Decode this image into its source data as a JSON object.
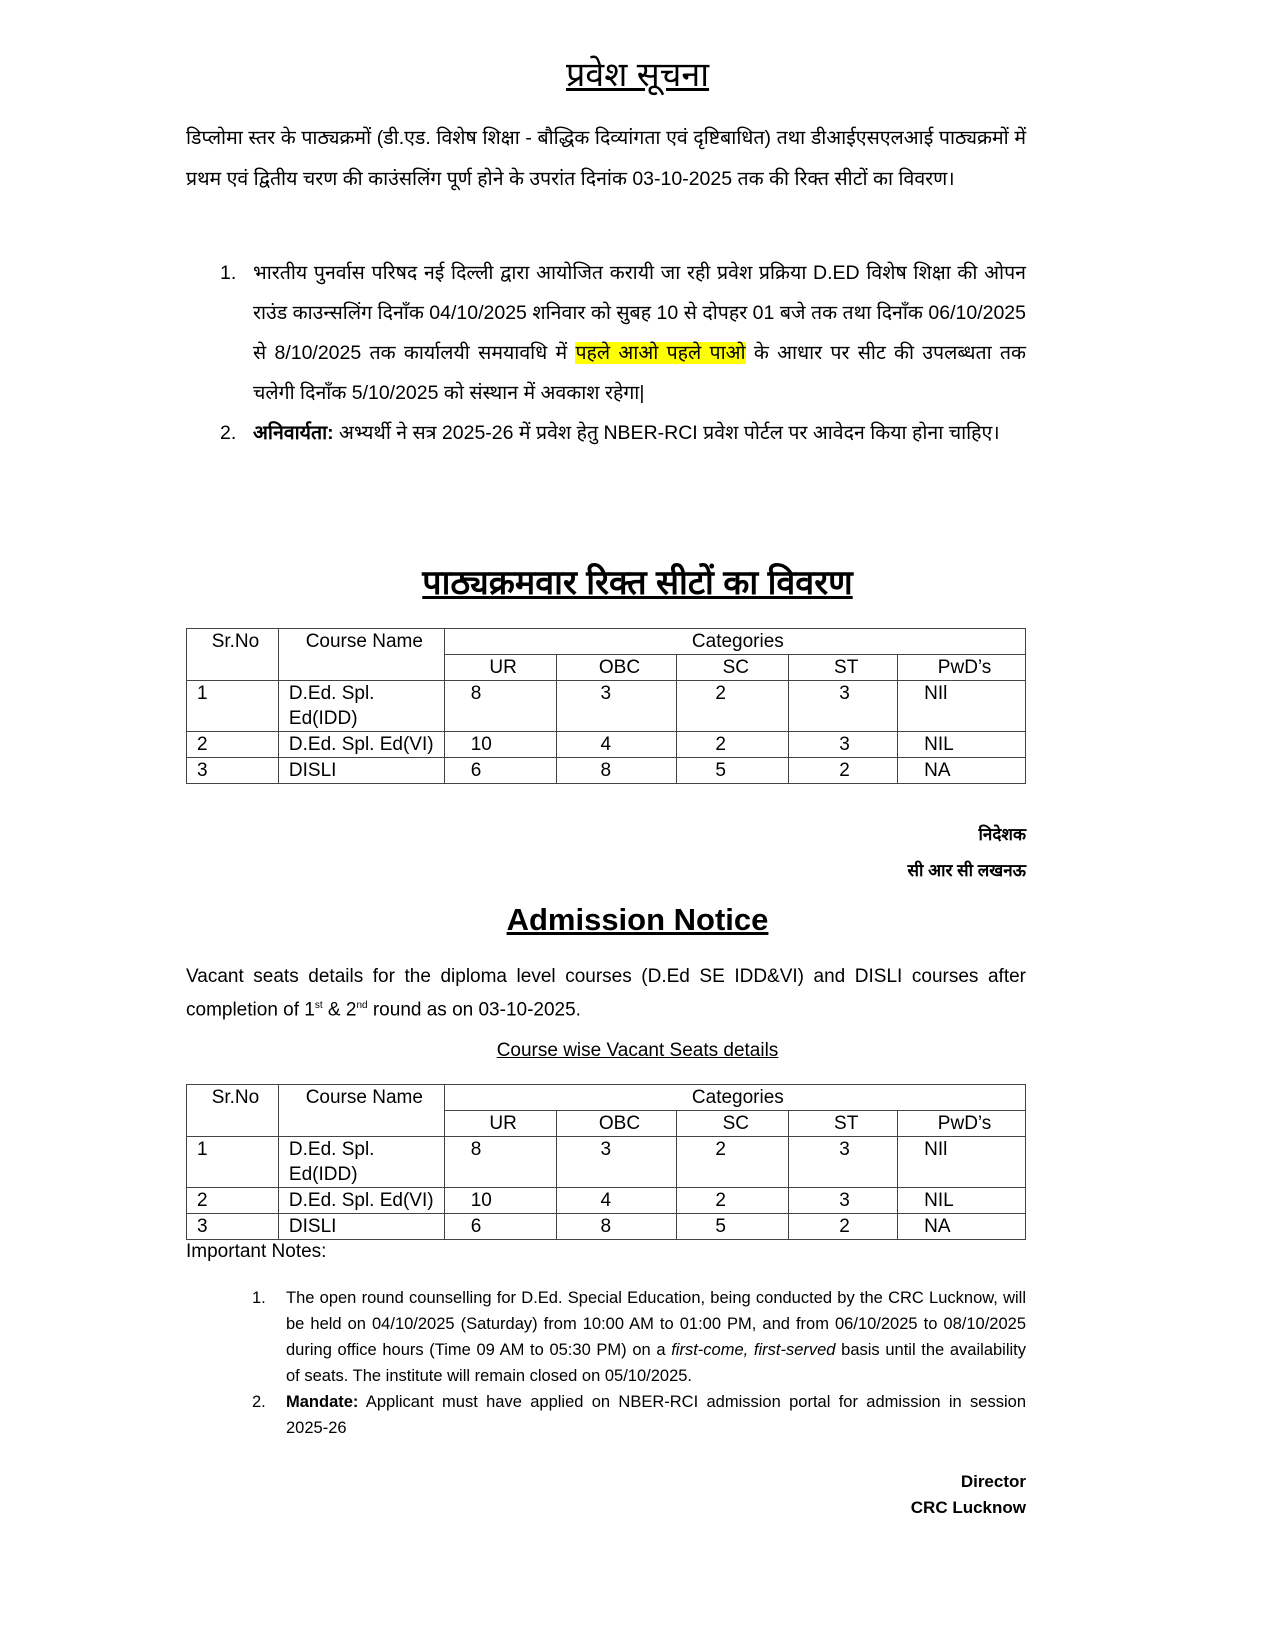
{
  "hindi": {
    "title": "प्रवेश सूचना",
    "intro": "डिप्लोमा स्तर के पाठ्यक्रमों (डी.एड. विशेष शिक्षा - बौद्धिक दिव्यांगता एवं दृष्टिबाधित) तथा डीआईएसएलआई पाठ्यक्रमों में प्रथम एवं द्वितीय चरण की काउंसलिंग पूर्ण होने के उपरांत दिनांक 03-10-2025 तक की रिक्त सीटों का विवरण।",
    "items": [
      {
        "num": "1.",
        "text_before": "भारतीय पुनर्वास परिषद नई दिल्ली द्वारा आयोजित करायी जा रही प्रवेश प्रक्रिया D.ED विशेष शिक्षा की ओपन राउंड काउन्सलिंग दिनाँक 04/10/2025 शनिवार को सुबह 10 से दोपहर 01 बजे तक  तथा दिनाँक 06/10/2025 से 8/10/2025 तक कार्यालयी समयावधि में ",
        "highlight": "पहले आओ पहले पाओ",
        "text_after": " के आधार पर सीट की उपलब्धता तक चलेगी दिनाँक 5/10/2025 को संस्थान में अवकाश रहेगा|"
      },
      {
        "num": "2.",
        "bold": "अनिवार्यता:",
        "text": " अभ्यर्थी ने सत्र 2025-26 में प्रवेश हेतु NBER-RCI प्रवेश पोर्टल पर आवेदन किया होना चाहिए।"
      }
    ],
    "table_title": "पाठ्यक्रमवार रिक्त सीटों का विवरण",
    "sign_line1": "निदेशक",
    "sign_line2": "सी आर सी लखनऊ"
  },
  "table": {
    "headers": {
      "srno": "Sr.No",
      "course": "Course Name",
      "categories": "Categories"
    },
    "categories": [
      "UR",
      "OBC",
      "SC",
      "ST",
      "PwD’s"
    ],
    "rows": [
      {
        "srno": "1",
        "course": "D.Ed. Spl. Ed(IDD)",
        "values": [
          "8",
          "3",
          "2",
          "3",
          "NIl"
        ]
      },
      {
        "srno": "2",
        "course": "D.Ed. Spl. Ed(VI)",
        "values": [
          "10",
          "4",
          "2",
          "3",
          "NIL"
        ]
      },
      {
        "srno": "3",
        "course": "DISLI",
        "values": [
          "6",
          "8",
          "5",
          "2",
          "NA"
        ]
      }
    ]
  },
  "english": {
    "title": "Admission Notice",
    "intro_a": " Vacant seats details for the diploma level courses (D.Ed SE IDD&VI) and DISLI courses after completion of 1",
    "sup1": "st",
    "intro_b": " & 2",
    "sup2": "nd",
    "intro_c": " round as on 03-10-2025.",
    "table_title": "Course wise Vacant Seats details",
    "notes_heading": "Important Notes:",
    "notes": [
      {
        "num": "1.",
        "text_a": "The open round counselling for D.Ed. Special Education, being conducted by the CRC Lucknow, will be held on 04/10/2025 (Saturday) from 10:00 AM to 01:00 PM, and from 06/10/2025 to 08/10/2025 during office hours (Time 09 AM to 05:30 PM) on a ",
        "italic": "first-come, first-served",
        "text_b": " basis until the availability of seats. The institute will remain closed on 05/10/2025."
      },
      {
        "num": "2.",
        "bold": "Mandate:",
        "text": " Applicant must have applied on NBER-RCI admission portal for admission in session 2025-26"
      }
    ],
    "sign_line1": "Director",
    "sign_line2": "CRC Lucknow"
  },
  "colors": {
    "highlight": "#ffff00",
    "border": "#444444"
  }
}
